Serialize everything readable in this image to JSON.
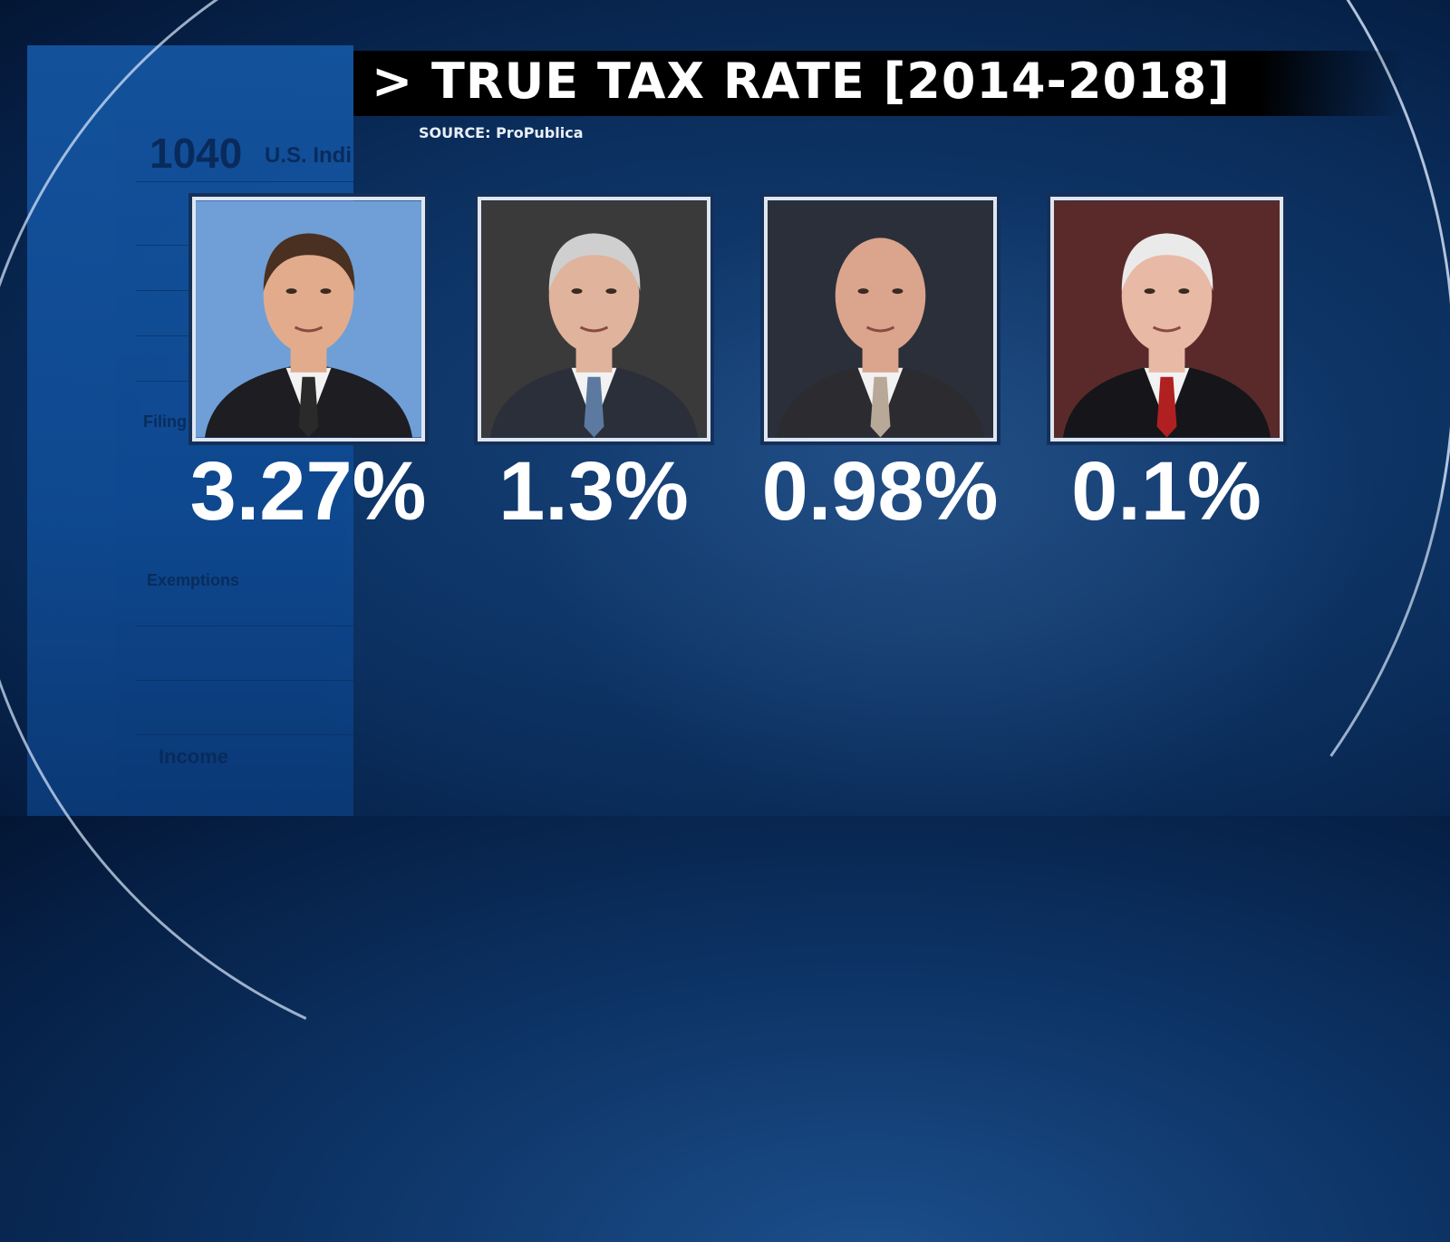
{
  "header": {
    "title": "> TRUE TAX RATE [2014-2018]",
    "source": "SOURCE: ProPublica"
  },
  "background_form": {
    "form_number": "1040",
    "form_title": "U.S. Indi",
    "filing_status": "Filing Status",
    "exemptions": "Exemptions",
    "income": "Income"
  },
  "people": [
    {
      "rate": "3.27%",
      "photo_bg": "#6f9fd6"
    },
    {
      "rate": "1.3%",
      "photo_bg": "#3a3a3a"
    },
    {
      "rate": "0.98%",
      "photo_bg": "#2b2f3a"
    },
    {
      "rate": "0.1%",
      "photo_bg": "#5a2a2a"
    }
  ],
  "colors": {
    "background": "#0d3466",
    "title_bar": "#000000",
    "text": "#ffffff"
  }
}
